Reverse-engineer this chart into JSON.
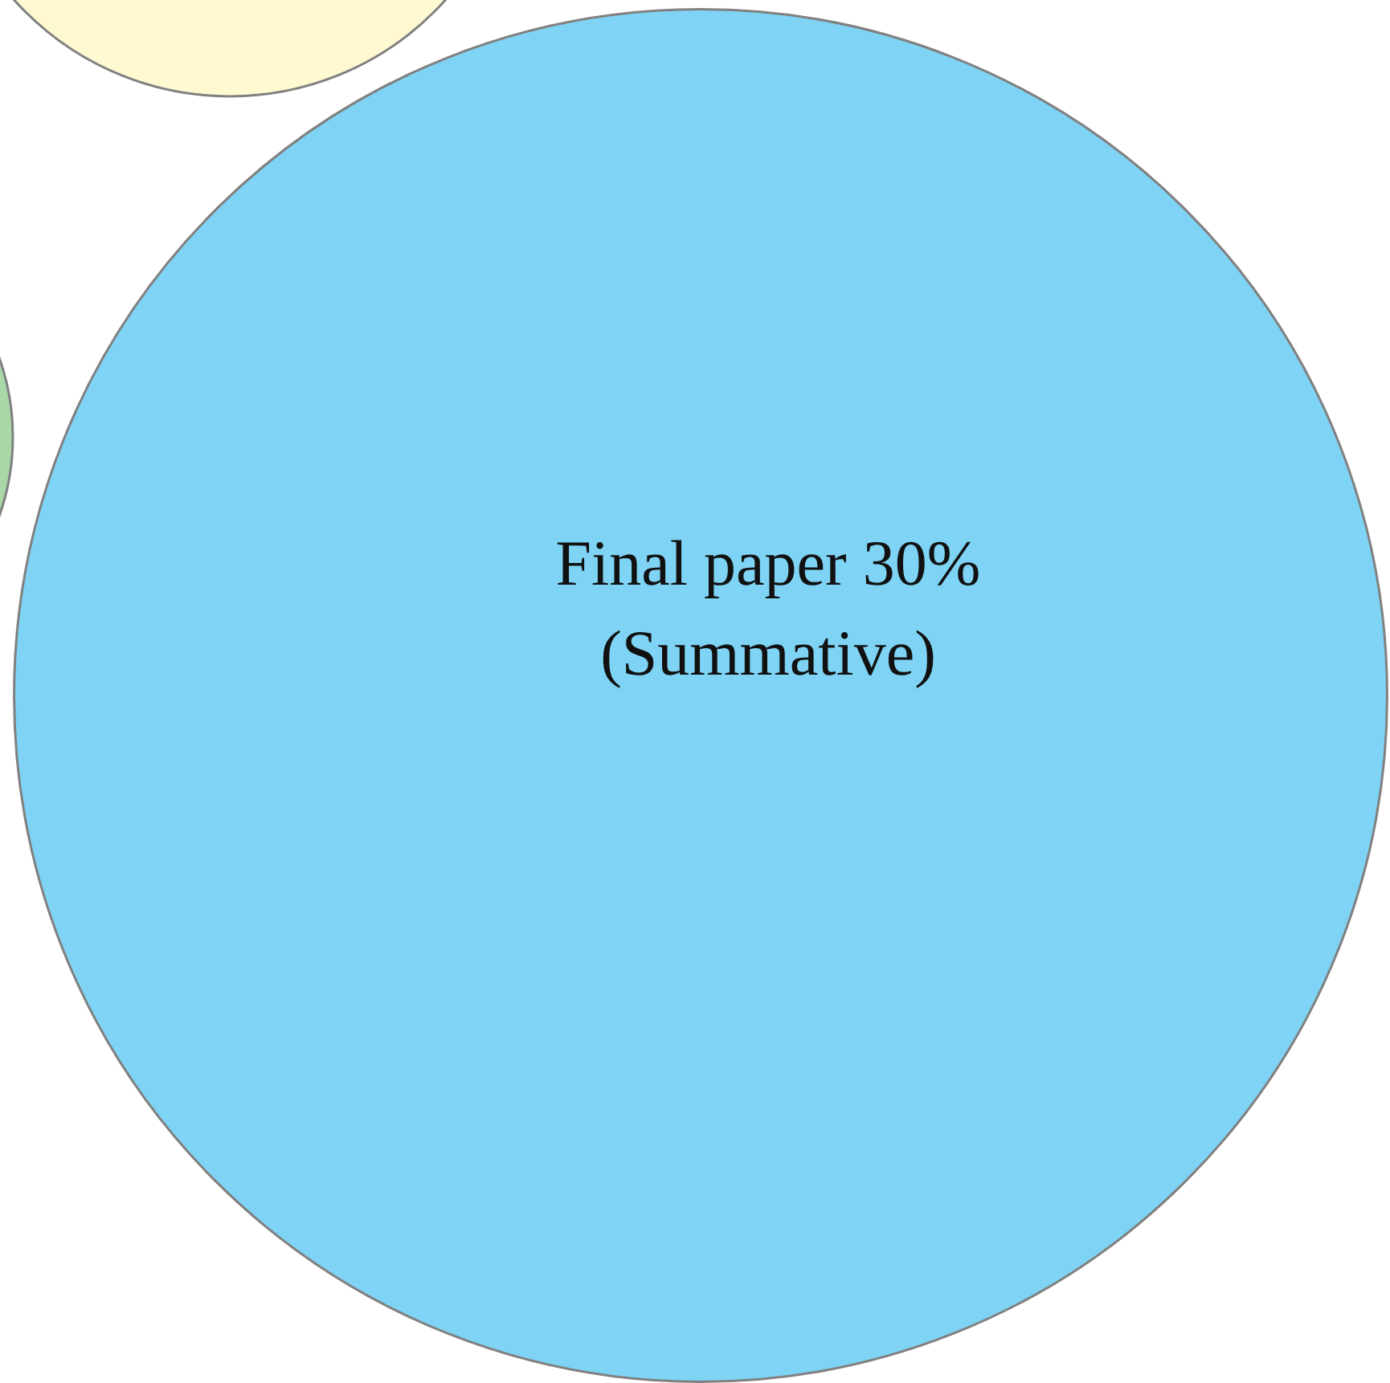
{
  "chart_data": {
    "type": "other",
    "categories": [
      "Final paper"
    ],
    "values": [
      30
    ],
    "value_labels": [
      "30%"
    ],
    "annotations": [
      "(Summative)"
    ],
    "colors": [
      "#7fd4f5"
    ]
  }
}
